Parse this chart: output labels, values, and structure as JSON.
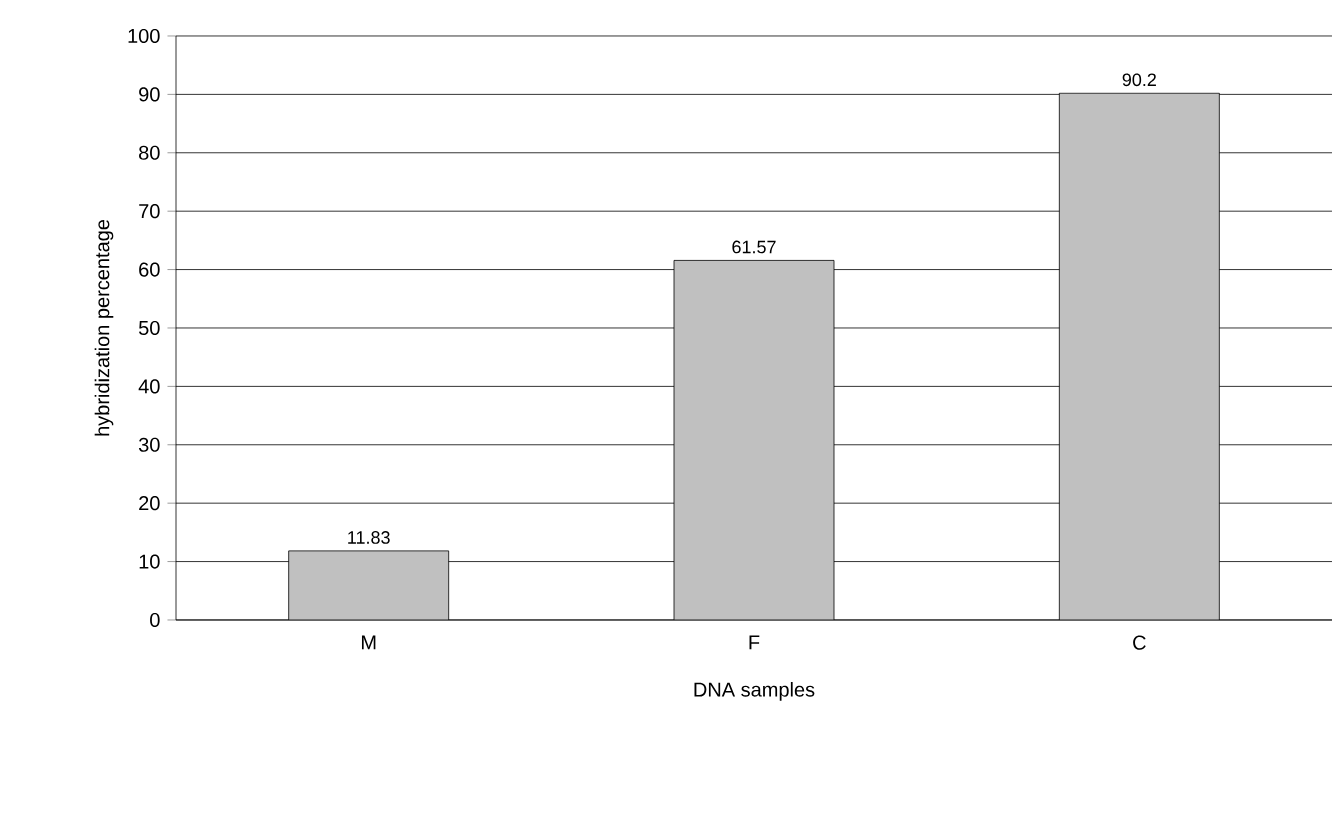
{
  "chart_data": {
    "type": "bar",
    "xlabel": "DNA samples",
    "ylabel": "hybridization percentage",
    "categories": [
      "M",
      "F",
      "C"
    ],
    "values": [
      11.83,
      61.57,
      90.2
    ],
    "color": "#c0c0c0",
    "ylim": [
      0,
      100
    ],
    "yticks": [
      0,
      10,
      20,
      30,
      40,
      50,
      60,
      70,
      80,
      90,
      100
    ],
    "grid": "y",
    "data_labels": true
  }
}
